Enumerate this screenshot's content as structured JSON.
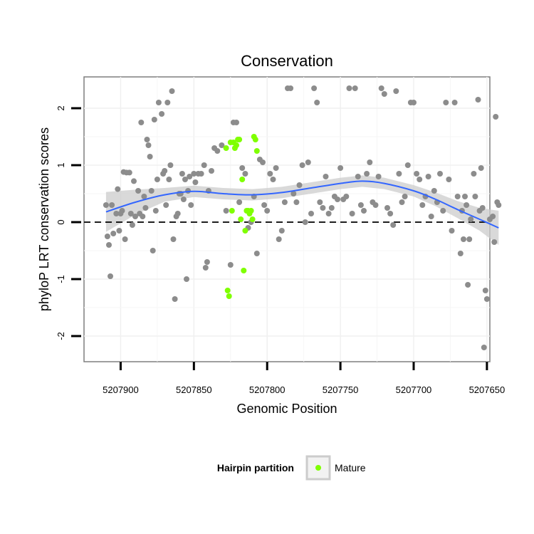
{
  "chart_data": {
    "type": "scatter",
    "title": "Conservation",
    "xlabel": "Genomic Position",
    "ylabel": "phyloP LRT conservation scores",
    "x_reversed": true,
    "xlim": [
      5207925,
      5207648
    ],
    "ylim": [
      -2.45,
      2.55
    ],
    "x_ticks": [
      5207900,
      5207850,
      5207800,
      5207750,
      5207700,
      5207650
    ],
    "x_tick_labels": [
      "5207900",
      "5207850",
      "5207800",
      "5207750",
      "5207700",
      "5207650"
    ],
    "y_ticks": [
      -2,
      -1,
      0,
      1,
      2
    ],
    "y_tick_labels": [
      "-2",
      "-1",
      "0",
      "1",
      "2"
    ],
    "grid": true,
    "reference_line": {
      "y": 0,
      "style": "dashed",
      "color": "#000000"
    },
    "legend": {
      "title": "Hairpin partition",
      "position": "bottom",
      "entries": [
        {
          "label": "Mature",
          "color": "#7fff00"
        }
      ]
    },
    "colors": {
      "default_points": "#8c8c8c",
      "mature_points": "#7fff00",
      "smooth_line": "#3366ff",
      "ribbon": "#cccccc"
    },
    "series": [
      {
        "name": "",
        "color": "#8c8c8c",
        "points": [
          [
            5207910,
            0.3
          ],
          [
            5207909,
            -0.25
          ],
          [
            5207908,
            -0.4
          ],
          [
            5207907,
            -0.95
          ],
          [
            5207906,
            0.3
          ],
          [
            5207905,
            -0.2
          ],
          [
            5207903,
            0.15
          ],
          [
            5207902,
            0.58
          ],
          [
            5207901,
            -0.15
          ],
          [
            5207900,
            0.15
          ],
          [
            5207899,
            0.2
          ],
          [
            5207898,
            0.88
          ],
          [
            5207897,
            -0.3
          ],
          [
            5207896,
            0.87
          ],
          [
            5207894,
            0.87
          ],
          [
            5207893,
            0.15
          ],
          [
            5207892,
            -0.05
          ],
          [
            5207891,
            0.72
          ],
          [
            5207890,
            0.1
          ],
          [
            5207888,
            0.55
          ],
          [
            5207887,
            0.15
          ],
          [
            5207886,
            1.75
          ],
          [
            5207885,
            0.1
          ],
          [
            5207884,
            0.45
          ],
          [
            5207883,
            0.25
          ],
          [
            5207882,
            1.45
          ],
          [
            5207881,
            1.35
          ],
          [
            5207880,
            1.15
          ],
          [
            5207879,
            0.55
          ],
          [
            5207878,
            -0.5
          ],
          [
            5207877,
            1.8
          ],
          [
            5207876,
            0.2
          ],
          [
            5207875,
            0.75
          ],
          [
            5207874,
            2.1
          ],
          [
            5207872,
            1.9
          ],
          [
            5207871,
            0.85
          ],
          [
            5207870,
            0.9
          ],
          [
            5207869,
            0.3
          ],
          [
            5207868,
            2.1
          ],
          [
            5207867,
            0.75
          ],
          [
            5207866,
            1.0
          ],
          [
            5207865,
            2.3
          ],
          [
            5207864,
            -0.3
          ],
          [
            5207863,
            -1.35
          ],
          [
            5207862,
            0.1
          ],
          [
            5207861,
            0.15
          ],
          [
            5207860,
            0.5
          ],
          [
            5207859,
            0.5
          ],
          [
            5207858,
            0.85
          ],
          [
            5207857,
            0.4
          ],
          [
            5207856,
            0.75
          ],
          [
            5207855,
            -1.0
          ],
          [
            5207854,
            0.55
          ],
          [
            5207853,
            0.8
          ],
          [
            5207852,
            0.3
          ],
          [
            5207850,
            0.85
          ],
          [
            5207849,
            0.7
          ],
          [
            5207847,
            0.85
          ],
          [
            5207845,
            0.85
          ],
          [
            5207843,
            1.0
          ],
          [
            5207842,
            -0.8
          ],
          [
            5207841,
            -0.7
          ],
          [
            5207840,
            0.55
          ],
          [
            5207838,
            0.9
          ],
          [
            5207836,
            1.3
          ],
          [
            5207834,
            1.25
          ],
          [
            5207831,
            1.35
          ],
          [
            5207828,
            0.2
          ],
          [
            5207825,
            -0.75
          ],
          [
            5207823,
            1.75
          ],
          [
            5207821,
            1.75
          ],
          [
            5207819,
            0.35
          ],
          [
            5207817,
            0.95
          ],
          [
            5207815,
            0.85
          ],
          [
            5207813,
            -0.1
          ],
          [
            5207811,
            0.0
          ],
          [
            5207809,
            0.45
          ],
          [
            5207807,
            -0.55
          ],
          [
            5207805,
            1.1
          ],
          [
            5207803,
            1.05
          ],
          [
            5207802,
            0.3
          ],
          [
            5207800,
            0.2
          ],
          [
            5207798,
            0.85
          ],
          [
            5207796,
            0.75
          ],
          [
            5207794,
            0.95
          ],
          [
            5207792,
            -0.3
          ],
          [
            5207790,
            -0.15
          ],
          [
            5207788,
            0.35
          ],
          [
            5207786,
            2.35
          ],
          [
            5207784,
            2.35
          ],
          [
            5207782,
            0.5
          ],
          [
            5207780,
            0.35
          ],
          [
            5207778,
            0.65
          ],
          [
            5207776,
            1.0
          ],
          [
            5207774,
            0.0
          ],
          [
            5207772,
            1.05
          ],
          [
            5207770,
            0.15
          ],
          [
            5207768,
            2.35
          ],
          [
            5207766,
            2.1
          ],
          [
            5207764,
            0.35
          ],
          [
            5207762,
            0.25
          ],
          [
            5207760,
            0.8
          ],
          [
            5207758,
            0.15
          ],
          [
            5207756,
            0.25
          ],
          [
            5207754,
            0.45
          ],
          [
            5207752,
            0.4
          ],
          [
            5207750,
            0.95
          ],
          [
            5207748,
            0.4
          ],
          [
            5207746,
            0.45
          ],
          [
            5207744,
            2.35
          ],
          [
            5207742,
            0.15
          ],
          [
            5207740,
            2.35
          ],
          [
            5207738,
            0.8
          ],
          [
            5207736,
            0.3
          ],
          [
            5207734,
            0.2
          ],
          [
            5207732,
            0.85
          ],
          [
            5207730,
            1.05
          ],
          [
            5207728,
            0.35
          ],
          [
            5207726,
            0.3
          ],
          [
            5207724,
            0.8
          ],
          [
            5207722,
            2.35
          ],
          [
            5207720,
            2.25
          ],
          [
            5207718,
            0.25
          ],
          [
            5207716,
            0.15
          ],
          [
            5207714,
            -0.05
          ],
          [
            5207712,
            2.3
          ],
          [
            5207710,
            0.85
          ],
          [
            5207708,
            0.35
          ],
          [
            5207706,
            0.45
          ],
          [
            5207704,
            1.0
          ],
          [
            5207702,
            2.1
          ],
          [
            5207700,
            2.1
          ],
          [
            5207698,
            0.85
          ],
          [
            5207696,
            0.75
          ],
          [
            5207694,
            0.3
          ],
          [
            5207692,
            0.45
          ],
          [
            5207690,
            0.8
          ],
          [
            5207688,
            0.1
          ],
          [
            5207686,
            0.55
          ],
          [
            5207684,
            0.35
          ],
          [
            5207682,
            0.85
          ],
          [
            5207680,
            0.2
          ],
          [
            5207678,
            2.1
          ],
          [
            5207676,
            0.75
          ],
          [
            5207674,
            -0.15
          ],
          [
            5207672,
            2.1
          ],
          [
            5207670,
            0.45
          ],
          [
            5207668,
            -0.55
          ],
          [
            5207667,
            0.2
          ],
          [
            5207666,
            -0.3
          ],
          [
            5207665,
            0.45
          ],
          [
            5207664,
            0.3
          ],
          [
            5207663,
            -1.1
          ],
          [
            5207662,
            -0.3
          ],
          [
            5207661,
            0.05
          ],
          [
            5207659,
            0.85
          ],
          [
            5207658,
            0.45
          ],
          [
            5207656,
            2.15
          ],
          [
            5207655,
            0.2
          ],
          [
            5207654,
            0.95
          ],
          [
            5207653,
            0.25
          ],
          [
            5207652,
            -2.2
          ],
          [
            5207651,
            -1.2
          ],
          [
            5207650,
            -1.35
          ],
          [
            5207648,
            0.05
          ],
          [
            5207646,
            0.1
          ],
          [
            5207645,
            -0.35
          ],
          [
            5207644,
            1.85
          ],
          [
            5207643,
            0.35
          ],
          [
            5207642,
            0.3
          ]
        ]
      },
      {
        "name": "Mature",
        "color": "#7fff00",
        "points": [
          [
            5207828,
            1.3
          ],
          [
            5207827,
            -1.2
          ],
          [
            5207826,
            -1.3
          ],
          [
            5207825,
            1.4
          ],
          [
            5207824,
            0.2
          ],
          [
            5207823,
            1.4
          ],
          [
            5207822,
            1.3
          ],
          [
            5207821,
            1.35
          ],
          [
            5207820,
            1.45
          ],
          [
            5207819,
            1.45
          ],
          [
            5207818,
            0.05
          ],
          [
            5207817,
            0.75
          ],
          [
            5207816,
            -0.85
          ],
          [
            5207815,
            -0.15
          ],
          [
            5207814,
            0.2
          ],
          [
            5207813,
            0.2
          ],
          [
            5207812,
            0.15
          ],
          [
            5207811,
            0.2
          ],
          [
            5207810,
            0.05
          ],
          [
            5207809,
            1.5
          ],
          [
            5207808,
            1.45
          ],
          [
            5207807,
            1.25
          ]
        ]
      }
    ],
    "smooth": {
      "x": [
        5207910,
        5207890,
        5207870,
        5207850,
        5207830,
        5207810,
        5207790,
        5207770,
        5207750,
        5207735,
        5207720,
        5207700,
        5207685,
        5207670,
        5207655,
        5207642
      ],
      "y": [
        0.18,
        0.35,
        0.48,
        0.54,
        0.5,
        0.48,
        0.52,
        0.6,
        0.68,
        0.72,
        0.68,
        0.55,
        0.4,
        0.22,
        0.05,
        -0.1
      ],
      "ribbon_halfwidth": [
        0.35,
        0.22,
        0.12,
        0.1,
        0.1,
        0.1,
        0.1,
        0.1,
        0.1,
        0.1,
        0.1,
        0.1,
        0.12,
        0.15,
        0.2,
        0.3
      ]
    }
  }
}
